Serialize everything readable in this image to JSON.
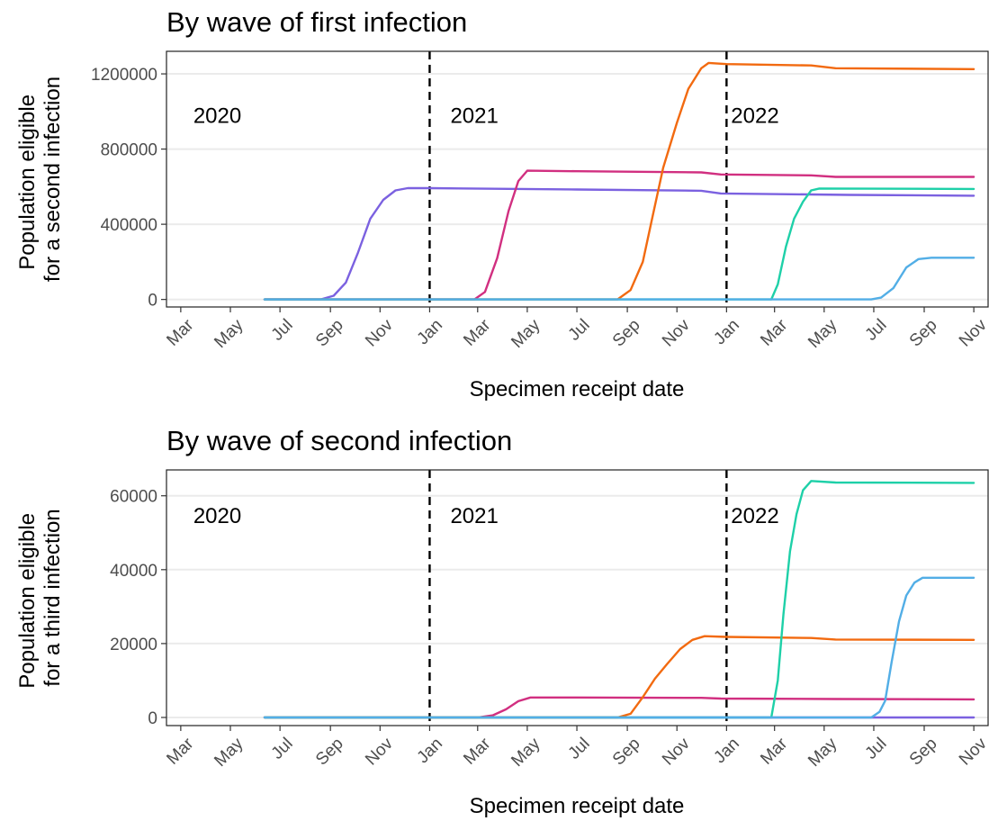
{
  "chart_data": [
    {
      "type": "line",
      "title": "By wave of first infection",
      "xlabel": "Specimen receipt date",
      "ylabel_lines": [
        "Population eligible",
        "for a second infection"
      ],
      "ylim": [
        -40000,
        1320000
      ],
      "yticks": [
        0,
        400000,
        800000,
        1200000
      ],
      "ytick_labels": [
        "0",
        "400000",
        "800000",
        "1200000"
      ],
      "xlim": [
        "2020-03-01",
        "2022-11-01"
      ],
      "xtick_labels": [
        "Mar",
        "May",
        "Jul",
        "Sep",
        "Nov",
        "Jan",
        "Mar",
        "May",
        "Jul",
        "Sep",
        "Nov",
        "Jan",
        "Mar",
        "May",
        "Jul",
        "Sep",
        "Nov"
      ],
      "xtick_dates": [
        "2020-03-01",
        "2020-05-01",
        "2020-07-01",
        "2020-09-01",
        "2020-11-01",
        "2021-01-01",
        "2021-03-01",
        "2021-05-01",
        "2021-07-01",
        "2021-09-01",
        "2021-11-01",
        "2022-01-01",
        "2022-03-01",
        "2022-05-01",
        "2022-07-01",
        "2022-09-01",
        "2022-11-01"
      ],
      "grid": true,
      "legend": "none",
      "vlines": [
        {
          "date": "2021-01-01",
          "style": "dashed"
        },
        {
          "date": "2022-01-01",
          "style": "dashed"
        }
      ],
      "annotations": [
        {
          "text": "2020",
          "date": "2020-04-15",
          "y": 940000
        },
        {
          "text": "2021",
          "date": "2021-02-25",
          "y": 940000
        },
        {
          "text": "2022",
          "date": "2022-02-05",
          "y": 940000
        }
      ],
      "series": [
        {
          "color": "#7b61e0",
          "points": [
            [
              "2020-06-12",
              0
            ],
            [
              "2020-08-20",
              0
            ],
            [
              "2020-09-05",
              20000
            ],
            [
              "2020-09-20",
              90000
            ],
            [
              "2020-10-05",
              250000
            ],
            [
              "2020-10-20",
              430000
            ],
            [
              "2020-11-05",
              530000
            ],
            [
              "2020-11-20",
              580000
            ],
            [
              "2020-12-05",
              592000
            ],
            [
              "2021-01-01",
              592000
            ],
            [
              "2021-07-01",
              585000
            ],
            [
              "2021-12-01",
              578000
            ],
            [
              "2021-12-25",
              564000
            ],
            [
              "2022-06-01",
              556000
            ],
            [
              "2022-11-01",
              552000
            ]
          ]
        },
        {
          "color": "#d12f80",
          "points": [
            [
              "2020-06-12",
              0
            ],
            [
              "2021-02-25",
              0
            ],
            [
              "2021-03-10",
              40000
            ],
            [
              "2021-03-25",
              220000
            ],
            [
              "2021-04-08",
              470000
            ],
            [
              "2021-04-20",
              630000
            ],
            [
              "2021-05-01",
              685000
            ],
            [
              "2021-07-01",
              682000
            ],
            [
              "2021-12-01",
              676000
            ],
            [
              "2021-12-25",
              665000
            ],
            [
              "2022-04-15",
              660000
            ],
            [
              "2022-05-15",
              652000
            ],
            [
              "2022-11-01",
              652000
            ]
          ]
        },
        {
          "color": "#f26a10",
          "points": [
            [
              "2020-06-12",
              0
            ],
            [
              "2021-08-20",
              0
            ],
            [
              "2021-09-05",
              50000
            ],
            [
              "2021-09-20",
              200000
            ],
            [
              "2021-10-01",
              420000
            ],
            [
              "2021-10-15",
              700000
            ],
            [
              "2021-11-01",
              940000
            ],
            [
              "2021-11-15",
              1120000
            ],
            [
              "2021-12-01",
              1230000
            ],
            [
              "2021-12-10",
              1258000
            ],
            [
              "2022-01-01",
              1252000
            ],
            [
              "2022-04-15",
              1245000
            ],
            [
              "2022-05-15",
              1230000
            ],
            [
              "2022-11-01",
              1225000
            ]
          ]
        },
        {
          "color": "#1ed0a8",
          "points": [
            [
              "2020-06-12",
              0
            ],
            [
              "2022-02-25",
              0
            ],
            [
              "2022-03-05",
              80000
            ],
            [
              "2022-03-15",
              280000
            ],
            [
              "2022-03-25",
              430000
            ],
            [
              "2022-04-05",
              520000
            ],
            [
              "2022-04-15",
              580000
            ],
            [
              "2022-04-25",
              590000
            ],
            [
              "2022-11-01",
              588000
            ]
          ]
        },
        {
          "color": "#52aee6",
          "points": [
            [
              "2020-06-12",
              0
            ],
            [
              "2022-06-28",
              0
            ],
            [
              "2022-07-10",
              10000
            ],
            [
              "2022-07-25",
              60000
            ],
            [
              "2022-08-10",
              170000
            ],
            [
              "2022-08-25",
              215000
            ],
            [
              "2022-09-10",
              222000
            ],
            [
              "2022-11-01",
              222000
            ]
          ]
        }
      ]
    },
    {
      "type": "line",
      "title": "By wave of second infection",
      "xlabel": "Specimen receipt date",
      "ylabel_lines": [
        "Population eligible",
        "for a third infection"
      ],
      "ylim": [
        -2200,
        67000
      ],
      "yticks": [
        0,
        20000,
        40000,
        60000
      ],
      "ytick_labels": [
        "0",
        "20000",
        "40000",
        "60000"
      ],
      "xlim": [
        "2020-03-01",
        "2022-11-01"
      ],
      "xtick_labels": [
        "Mar",
        "May",
        "Jul",
        "Sep",
        "Nov",
        "Jan",
        "Mar",
        "May",
        "Jul",
        "Sep",
        "Nov",
        "Jan",
        "Mar",
        "May",
        "Jul",
        "Sep",
        "Nov"
      ],
      "xtick_dates": [
        "2020-03-01",
        "2020-05-01",
        "2020-07-01",
        "2020-09-01",
        "2020-11-01",
        "2021-01-01",
        "2021-03-01",
        "2021-05-01",
        "2021-07-01",
        "2021-09-01",
        "2021-11-01",
        "2022-01-01",
        "2022-03-01",
        "2022-05-01",
        "2022-07-01",
        "2022-09-01",
        "2022-11-01"
      ],
      "grid": true,
      "legend": "none",
      "vlines": [
        {
          "date": "2021-01-01",
          "style": "dashed"
        },
        {
          "date": "2022-01-01",
          "style": "dashed"
        }
      ],
      "annotations": [
        {
          "text": "2020",
          "date": "2020-04-15",
          "y": 52600
        },
        {
          "text": "2021",
          "date": "2021-02-25",
          "y": 52600
        },
        {
          "text": "2022",
          "date": "2022-02-05",
          "y": 52600
        }
      ],
      "series": [
        {
          "color": "#7b61e0",
          "points": [
            [
              "2020-06-12",
              0
            ],
            [
              "2022-11-01",
              0
            ]
          ]
        },
        {
          "color": "#d12f80",
          "points": [
            [
              "2020-06-12",
              0
            ],
            [
              "2021-03-01",
              0
            ],
            [
              "2021-03-20",
              600
            ],
            [
              "2021-04-05",
              2200
            ],
            [
              "2021-04-20",
              4400
            ],
            [
              "2021-05-05",
              5400
            ],
            [
              "2021-07-01",
              5400
            ],
            [
              "2021-12-01",
              5300
            ],
            [
              "2021-12-25",
              5100
            ],
            [
              "2022-05-15",
              5000
            ],
            [
              "2022-11-01",
              4900
            ]
          ]
        },
        {
          "color": "#f26a10",
          "points": [
            [
              "2020-06-12",
              0
            ],
            [
              "2021-08-20",
              0
            ],
            [
              "2021-09-05",
              1000
            ],
            [
              "2021-09-20",
              5500
            ],
            [
              "2021-10-05",
              10500
            ],
            [
              "2021-10-20",
              14500
            ],
            [
              "2021-11-05",
              18500
            ],
            [
              "2021-11-20",
              21000
            ],
            [
              "2021-12-05",
              22000
            ],
            [
              "2022-01-01",
              21800
            ],
            [
              "2022-04-15",
              21500
            ],
            [
              "2022-05-15",
              21100
            ],
            [
              "2022-11-01",
              21000
            ]
          ]
        },
        {
          "color": "#1ed0a8",
          "points": [
            [
              "2020-06-12",
              0
            ],
            [
              "2022-02-25",
              0
            ],
            [
              "2022-03-05",
              10000
            ],
            [
              "2022-03-12",
              28000
            ],
            [
              "2022-03-20",
              45000
            ],
            [
              "2022-03-28",
              55000
            ],
            [
              "2022-04-05",
              61500
            ],
            [
              "2022-04-15",
              64000
            ],
            [
              "2022-05-15",
              63600
            ],
            [
              "2022-11-01",
              63500
            ]
          ]
        },
        {
          "color": "#52aee6",
          "points": [
            [
              "2020-06-12",
              0
            ],
            [
              "2022-06-28",
              0
            ],
            [
              "2022-07-08",
              1500
            ],
            [
              "2022-07-15",
              4500
            ],
            [
              "2022-07-23",
              15000
            ],
            [
              "2022-08-01",
              26000
            ],
            [
              "2022-08-10",
              33000
            ],
            [
              "2022-08-20",
              36500
            ],
            [
              "2022-08-30",
              37800
            ],
            [
              "2022-11-01",
              37800
            ]
          ]
        }
      ]
    }
  ]
}
